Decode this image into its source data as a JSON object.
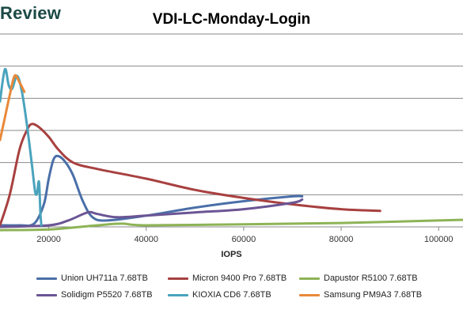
{
  "watermark": "Review",
  "colors": {
    "Union UH711a 7.68TB": "#4a6fa8",
    "Micron 9400 Pro 7.68TB": "#a84040",
    "Dapustor R5100 7.68TB": "#8db356",
    "Solidigm P5520 7.68TB": "#6b5594",
    "KIOXIA CD6 7.68TB": "#4aa3bd",
    "Samsung PM9A3 7.68TB": "#e8893a"
  },
  "chart_data": {
    "type": "line",
    "title": "VDI-LC-Monday-Login",
    "xlabel": "IOPS",
    "ylabel": "",
    "xlim": [
      10000,
      105000
    ],
    "ylim": [
      0,
      6
    ],
    "grid": true,
    "legend_placement": "bottom",
    "x_ticks": [
      "20000",
      "40000",
      "60000",
      "80000",
      "100000"
    ],
    "series": [
      {
        "name": "Union UH711a 7.68TB",
        "points": [
          [
            10000,
            0.05
          ],
          [
            14000,
            0.05
          ],
          [
            17000,
            0.1
          ],
          [
            19000,
            0.7
          ],
          [
            20000,
            1.5
          ],
          [
            21000,
            2.1
          ],
          [
            22000,
            2.2
          ],
          [
            23500,
            2.0
          ],
          [
            25000,
            1.6
          ],
          [
            27000,
            0.8
          ],
          [
            29000,
            0.3
          ],
          [
            32000,
            0.2
          ],
          [
            40000,
            0.35
          ],
          [
            50000,
            0.6
          ],
          [
            60000,
            0.8
          ],
          [
            70000,
            0.95
          ],
          [
            72000,
            0.95
          ]
        ]
      },
      {
        "name": "Micron 9400 Pro 7.68TB",
        "points": [
          [
            10000,
            0.05
          ],
          [
            12000,
            1.0
          ],
          [
            14000,
            2.4
          ],
          [
            15500,
            3.0
          ],
          [
            16500,
            3.2
          ],
          [
            18000,
            3.1
          ],
          [
            20000,
            2.8
          ],
          [
            22000,
            2.4
          ],
          [
            25000,
            2.0
          ],
          [
            30000,
            1.8
          ],
          [
            40000,
            1.5
          ],
          [
            50000,
            1.15
          ],
          [
            60000,
            0.9
          ],
          [
            70000,
            0.7
          ],
          [
            80000,
            0.55
          ],
          [
            88000,
            0.5
          ]
        ]
      },
      {
        "name": "Dapustor R5100 7.68TB",
        "points": [
          [
            10000,
            -0.1
          ],
          [
            20000,
            -0.08
          ],
          [
            30000,
            0.05
          ],
          [
            35000,
            0.1
          ],
          [
            40000,
            0.05
          ],
          [
            60000,
            0.08
          ],
          [
            80000,
            0.12
          ],
          [
            100000,
            0.2
          ],
          [
            105000,
            0.22
          ]
        ]
      },
      {
        "name": "Solidigm P5520 7.68TB",
        "points": [
          [
            10000,
            0.0
          ],
          [
            20000,
            0.05
          ],
          [
            24000,
            0.2
          ],
          [
            28000,
            0.45
          ],
          [
            30000,
            0.4
          ],
          [
            34000,
            0.3
          ],
          [
            40000,
            0.35
          ],
          [
            50000,
            0.45
          ],
          [
            60000,
            0.55
          ],
          [
            70000,
            0.75
          ],
          [
            72000,
            0.85
          ]
        ]
      },
      {
        "name": "KIOXIA CD6 7.68TB",
        "points": [
          [
            10000,
            3.9
          ],
          [
            11000,
            4.9
          ],
          [
            11800,
            4.4
          ],
          [
            12500,
            4.3
          ],
          [
            13500,
            4.7
          ],
          [
            14500,
            4.2
          ],
          [
            15500,
            3.2
          ],
          [
            16500,
            2.0
          ],
          [
            17200,
            1.1
          ],
          [
            17600,
            1.05
          ],
          [
            18000,
            1.4
          ],
          [
            18300,
            0.4
          ],
          [
            18500,
            0.05
          ]
        ]
      },
      {
        "name": "Samsung PM9A3 7.68TB",
        "points": [
          [
            10000,
            2.7
          ],
          [
            11000,
            3.4
          ],
          [
            12000,
            4.1
          ],
          [
            13000,
            4.7
          ],
          [
            14000,
            4.5
          ],
          [
            15000,
            4.2
          ]
        ]
      }
    ]
  }
}
